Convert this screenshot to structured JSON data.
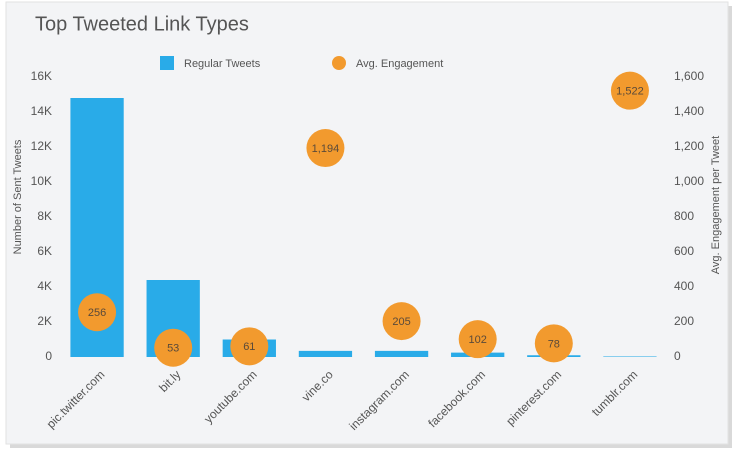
{
  "chart_data": {
    "type": "bar",
    "title": "Top Tweeted Link Types",
    "categories": [
      "pic.twitter.com",
      "bit.ly",
      "youtube.com",
      "vine.co",
      "instagram.com",
      "facebook.com",
      "pinterest.com",
      "tumblr.com"
    ],
    "series": [
      {
        "name": "Regular Tweets",
        "color": "#29abe8",
        "values": [
          14800,
          4400,
          1000,
          350,
          350,
          250,
          100,
          30
        ]
      },
      {
        "name": "Avg. Engagement",
        "type": "scatter",
        "axis": "y2",
        "color": "#f29a2e",
        "values": [
          256,
          53,
          61,
          1194,
          205,
          102,
          78,
          1522
        ],
        "value_labels": [
          "256",
          "53",
          "61",
          "1,194",
          "205",
          "102",
          "78",
          "1,522"
        ]
      }
    ],
    "ylabel": "Number of Sent Tweets",
    "y2label": "Avg. Engagement per Tweet",
    "ylim": [
      0,
      16000
    ],
    "yticks": [
      0,
      {
        "value": 2000,
        "label": "2K"
      },
      {
        "value": 4000,
        "label": "4K"
      },
      {
        "value": 6000,
        "label": "6K"
      },
      {
        "value": 8000,
        "label": "8K"
      },
      {
        "value": 10000,
        "label": "10K"
      },
      {
        "value": 12000,
        "label": "12K"
      },
      {
        "value": 14000,
        "label": "14K"
      },
      {
        "value": 16000,
        "label": "16K"
      }
    ],
    "y2lim": [
      0,
      1600
    ],
    "y2ticks": [
      0,
      200,
      400,
      600,
      800,
      {
        "value": 1000,
        "label": "1,000"
      },
      {
        "value": 1200,
        "label": "1,200"
      },
      {
        "value": 1400,
        "label": "1,400"
      },
      {
        "value": 1600,
        "label": "1,600"
      }
    ],
    "grid": false
  }
}
